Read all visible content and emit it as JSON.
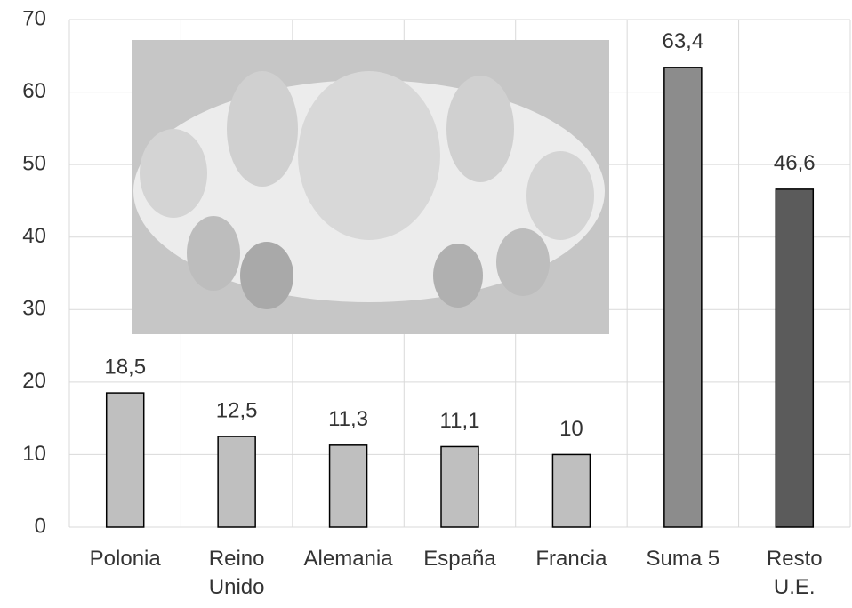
{
  "chart_data": {
    "type": "bar",
    "categories": [
      "Polonia",
      "Reino\nUnido",
      "Alemania",
      "España",
      "Francia",
      "Suma 5",
      "Resto\nU.E."
    ],
    "values": [
      18.5,
      12.5,
      11.3,
      11.1,
      10,
      63.4,
      46.6
    ],
    "value_labels": [
      "18,5",
      "12,5",
      "11,3",
      "11,1",
      "10",
      "63,4",
      "46,6"
    ],
    "colors": [
      "#bfbfbf",
      "#bfbfbf",
      "#bfbfbf",
      "#bfbfbf",
      "#bfbfbf",
      "#8c8c8c",
      "#5b5b5b"
    ],
    "ylim": [
      0,
      70
    ],
    "yticks": [
      0,
      10,
      20,
      30,
      40,
      50,
      60,
      70
    ],
    "grid": true
  }
}
